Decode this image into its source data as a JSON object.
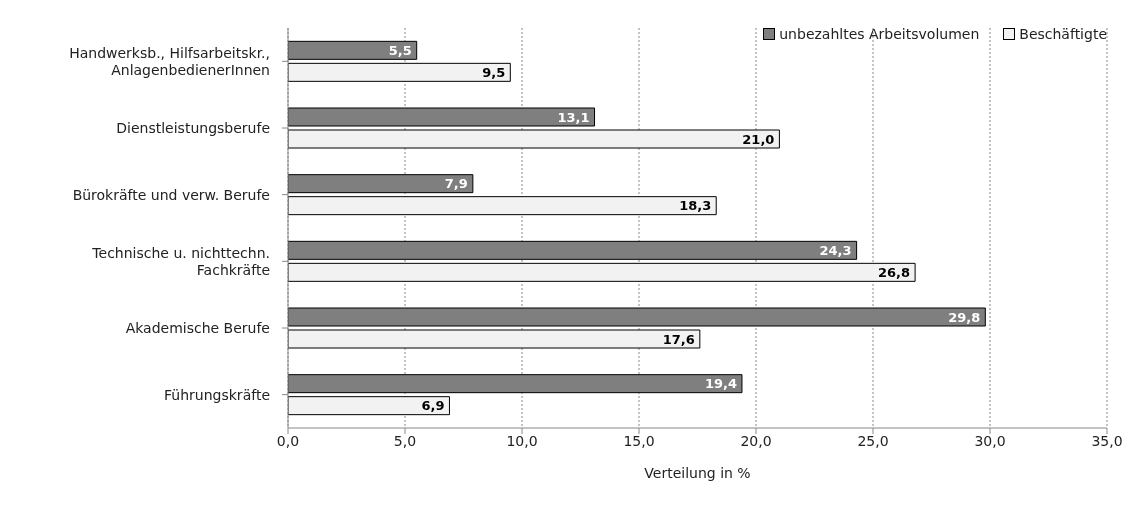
{
  "chart_data": {
    "type": "bar",
    "orientation": "horizontal",
    "xlabel": "Verteilung in %",
    "categories": [
      "Handwerksb., Hilfsarbeitskr., AnlagenbedienerInnen",
      "Dienstleistungsberufe",
      "Bürokräfte und verw. Berufe",
      "Technische u. nichttechn. Fachkräfte",
      "Akademische Berufe",
      "Führungskräfte"
    ],
    "series": [
      {
        "name": "unbezahltes Arbeitsvolumen",
        "color": "#7f7f7f",
        "values": [
          5.5,
          13.1,
          7.9,
          24.3,
          29.8,
          19.4
        ],
        "value_labels": [
          "5,5",
          "13,1",
          "7,9",
          "24,3",
          "29,8",
          "19,4"
        ]
      },
      {
        "name": "Beschäftigte",
        "color": "#f2f2f2",
        "values": [
          9.5,
          21.0,
          18.3,
          26.8,
          17.6,
          6.9
        ],
        "value_labels": [
          "9,5",
          "21,0",
          "18,3",
          "26,8",
          "17,6",
          "6,9"
        ]
      }
    ],
    "xlim": [
      0,
      35
    ],
    "xticks": [
      {
        "value": 0,
        "label": "0,0"
      },
      {
        "value": 5,
        "label": "5,0"
      },
      {
        "value": 10,
        "label": "10,0"
      },
      {
        "value": 15,
        "label": "15,0"
      },
      {
        "value": 20,
        "label": "20,0"
      },
      {
        "value": 25,
        "label": "25,0"
      },
      {
        "value": 30,
        "label": "30,0"
      },
      {
        "value": 35,
        "label": "35,0"
      }
    ],
    "grid": "x",
    "legend": "top right"
  }
}
